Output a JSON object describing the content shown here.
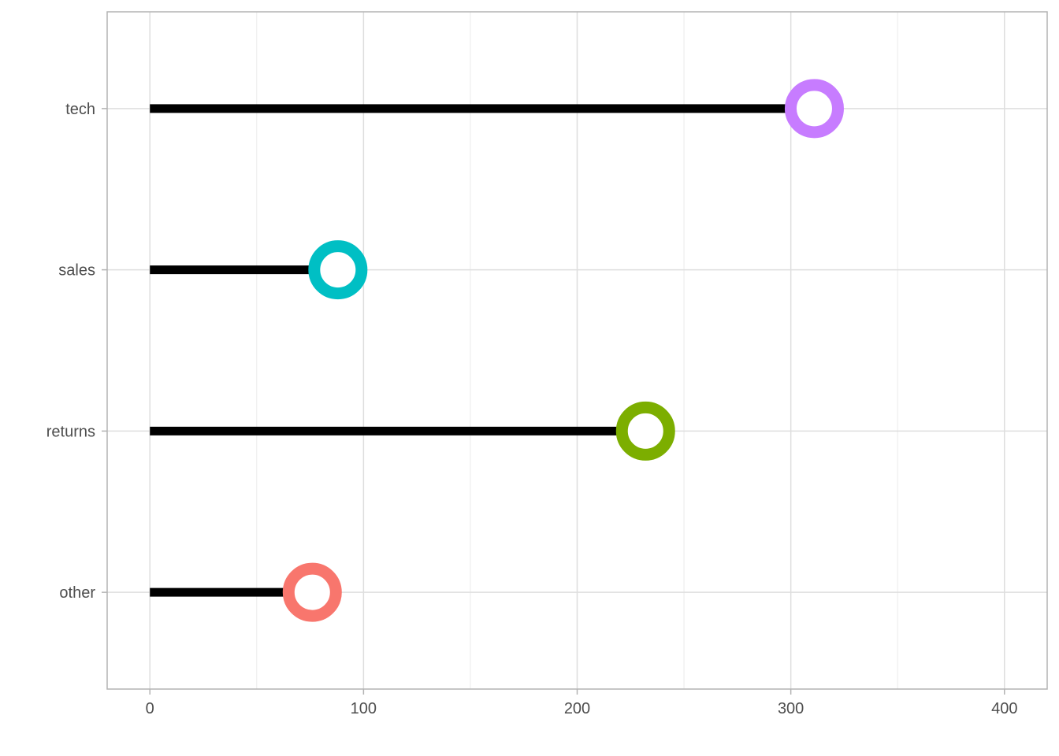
{
  "chart_data": {
    "type": "lollipop",
    "orientation": "horizontal",
    "categories": [
      "other",
      "returns",
      "sales",
      "tech"
    ],
    "values": [
      76,
      232,
      88,
      311
    ],
    "colors": [
      "#F8766D",
      "#7CAE00",
      "#00BFC4",
      "#C77CFF"
    ],
    "stem_color": "#000000",
    "xlim": [
      -20,
      420
    ],
    "x_ticks": [
      0,
      100,
      200,
      300,
      400
    ],
    "grid": true,
    "title": "",
    "xlabel": "",
    "ylabel": ""
  }
}
